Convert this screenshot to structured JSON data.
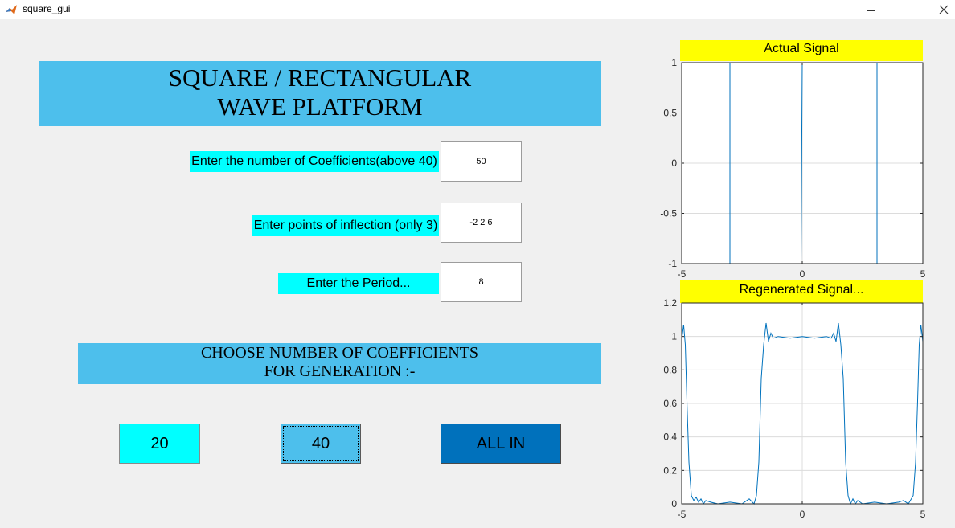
{
  "window": {
    "title": "square_gui",
    "icon": "matlab-icon"
  },
  "header": {
    "line1": "SQUARE / RECTANGULAR",
    "line2": "WAVE PLATFORM"
  },
  "inputs": {
    "coefficients": {
      "label": "Enter the number of Coefficients(above 40)",
      "value": "50"
    },
    "inflection": {
      "label": "Enter points of inflection (only 3)",
      "value": "-2 2 6"
    },
    "period": {
      "label": "Enter the Period...",
      "value": "8"
    }
  },
  "choose": {
    "line1": "CHOOSE NUMBER OF COEFFICIENTS",
    "line2": "FOR GENERATION :-"
  },
  "buttons": {
    "b20": "20",
    "b40": "40",
    "all": "ALL IN"
  },
  "colors": {
    "panel_blue": "#4dbfec",
    "cyan": "#00ffff",
    "yellow": "#ffff00",
    "all_in_blue": "#0071bc",
    "line": "#0072bd"
  },
  "chart_data": [
    {
      "type": "line",
      "title": "Actual Signal",
      "xlim": [
        -5,
        5
      ],
      "ylim": [
        -1,
        1
      ],
      "xticks": [
        -5,
        0,
        5
      ],
      "yticks": [
        -1,
        -0.5,
        0,
        0.5,
        1
      ],
      "ytick_labels": [
        "-1",
        "-0.5",
        "0",
        "0.5",
        "1"
      ],
      "grid": true,
      "series": [
        {
          "x": [
            -4.85,
            -3.0,
            -3.0,
            -0.05,
            0.0,
            0.0,
            3.1,
            3.1,
            5.0
          ],
          "y": [
            1,
            1,
            -1,
            -1,
            1,
            1,
            1,
            -1,
            -1
          ]
        }
      ]
    },
    {
      "type": "line",
      "title": "Regenerated Signal...",
      "xlim": [
        -5,
        5
      ],
      "ylim": [
        0,
        1.2
      ],
      "xticks": [
        -5,
        0,
        5
      ],
      "yticks": [
        0,
        0.2,
        0.4,
        0.6,
        0.8,
        1,
        1.2
      ],
      "ytick_labels": [
        "0",
        "0.2",
        "0.4",
        "0.6",
        "0.8",
        "1",
        "1.2"
      ],
      "grid": true,
      "series": [
        {
          "x": [
            -5.0,
            -4.92,
            -4.85,
            -4.78,
            -4.7,
            -4.6,
            -4.5,
            -4.4,
            -4.3,
            -4.2,
            -4.1,
            -4.0,
            -3.8,
            -3.5,
            -3.0,
            -2.5,
            -2.2,
            -2.0,
            -1.9,
            -1.8,
            -1.75,
            -1.7,
            -1.6,
            -1.5,
            -1.4,
            -1.3,
            -1.2,
            -1.0,
            -0.5,
            0.0,
            0.5,
            1.0,
            1.2,
            1.3,
            1.4,
            1.5,
            1.6,
            1.7,
            1.75,
            1.8,
            1.9,
            2.0,
            2.1,
            2.2,
            2.3,
            2.4,
            2.5,
            3.0,
            3.5,
            4.0,
            4.2,
            4.4,
            4.6,
            4.7,
            4.78,
            4.85,
            4.92,
            5.0
          ],
          "y": [
            0.98,
            1.07,
            0.95,
            0.6,
            0.25,
            0.05,
            0.02,
            0.04,
            0.01,
            0.03,
            0.0,
            0.02,
            0.01,
            0.0,
            0.01,
            0.0,
            0.03,
            0.0,
            0.05,
            0.25,
            0.5,
            0.75,
            0.95,
            1.08,
            0.97,
            1.02,
            0.99,
            1.0,
            0.99,
            1.0,
            0.99,
            1.0,
            0.99,
            1.02,
            0.97,
            1.08,
            0.95,
            0.75,
            0.5,
            0.25,
            0.05,
            0.0,
            0.03,
            0.0,
            0.02,
            0.01,
            0.0,
            0.01,
            0.0,
            0.01,
            0.02,
            0.0,
            0.05,
            0.25,
            0.6,
            0.95,
            1.07,
            0.97
          ]
        }
      ]
    }
  ]
}
